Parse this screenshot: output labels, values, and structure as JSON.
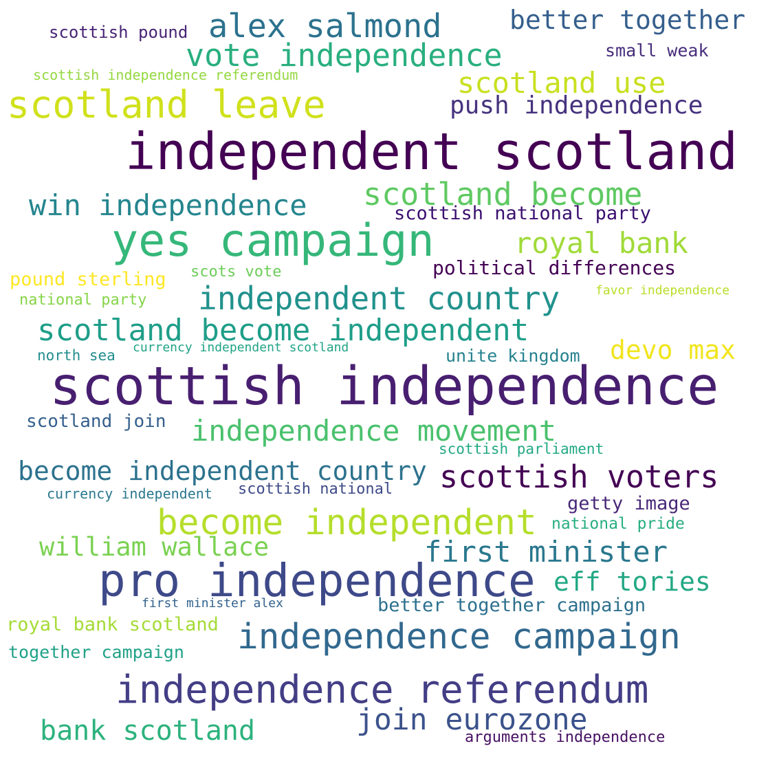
{
  "words": [
    {
      "text": "scottish independence",
      "color": "#481f70"
    },
    {
      "text": "independent scotland",
      "color": "#440154"
    },
    {
      "text": "yes campaign",
      "color": "#35b779"
    },
    {
      "text": "pro independence",
      "color": "#3e4989"
    },
    {
      "text": "independence referendum",
      "color": "#433e85"
    },
    {
      "text": "scotland leave",
      "color": "#d0e11c"
    },
    {
      "text": "independence campaign",
      "color": "#31688e"
    },
    {
      "text": "become independent",
      "color": "#b5de2b"
    },
    {
      "text": "independent country",
      "color": "#21918c"
    },
    {
      "text": "scotland become independent",
      "color": "#1f9e89"
    },
    {
      "text": "vote independence",
      "color": "#29af7f"
    },
    {
      "text": "alex salmond",
      "color": "#2c728e"
    },
    {
      "text": "scotland become",
      "color": "#5ec962"
    },
    {
      "text": "win independence",
      "color": "#25858e"
    },
    {
      "text": "independence movement",
      "color": "#4ac16d"
    },
    {
      "text": "scottish voters",
      "color": "#440154"
    },
    {
      "text": "become independent country",
      "color": "#2c728e"
    },
    {
      "text": "first minister",
      "color": "#2a788e"
    },
    {
      "text": "join eurozone",
      "color": "#3b528b"
    },
    {
      "text": "scotland use",
      "color": "#c8e020"
    },
    {
      "text": "bank scotland",
      "color": "#2db27d"
    },
    {
      "text": "royal bank",
      "color": "#a0da39"
    },
    {
      "text": "push independence",
      "color": "#46327e"
    },
    {
      "text": "william wallace",
      "color": "#7ad151"
    },
    {
      "text": "better together",
      "color": "#355f8d"
    },
    {
      "text": "eff tories",
      "color": "#22a884"
    },
    {
      "text": "devo max",
      "color": "#f1e51d"
    },
    {
      "text": "political differences",
      "color": "#440154"
    },
    {
      "text": "better together campaign",
      "color": "#2d708e"
    },
    {
      "text": "scottish national party",
      "color": "#3b0f70"
    },
    {
      "text": "royal bank scotland",
      "color": "#a5db36"
    },
    {
      "text": "together campaign",
      "color": "#1fa187"
    },
    {
      "text": "getty image",
      "color": "#482878"
    },
    {
      "text": "unite kingdom",
      "color": "#26828e"
    },
    {
      "text": "scotland join",
      "color": "#355f8d"
    },
    {
      "text": "pound sterling",
      "color": "#fde725"
    },
    {
      "text": "scottish pound",
      "color": "#482475"
    },
    {
      "text": "small weak",
      "color": "#472d7b"
    },
    {
      "text": "national pride",
      "color": "#27ad81"
    },
    {
      "text": "arguments independence",
      "color": "#471063"
    },
    {
      "text": "scottish national",
      "color": "#3e4a89"
    },
    {
      "text": "national party",
      "color": "#86d549"
    },
    {
      "text": "scots vote",
      "color": "#6ccd5a"
    },
    {
      "text": "currency independent",
      "color": "#2a788e"
    },
    {
      "text": "scottish independence referendum",
      "color": "#95d840"
    },
    {
      "text": "north sea",
      "color": "#228c8d"
    },
    {
      "text": "scottish parliament",
      "color": "#22a884"
    },
    {
      "text": "first minister alex",
      "color": "#33628d"
    },
    {
      "text": "favor independence",
      "color": "#b8de29"
    },
    {
      "text": "currency independent scotland",
      "color": "#20a386"
    }
  ]
}
